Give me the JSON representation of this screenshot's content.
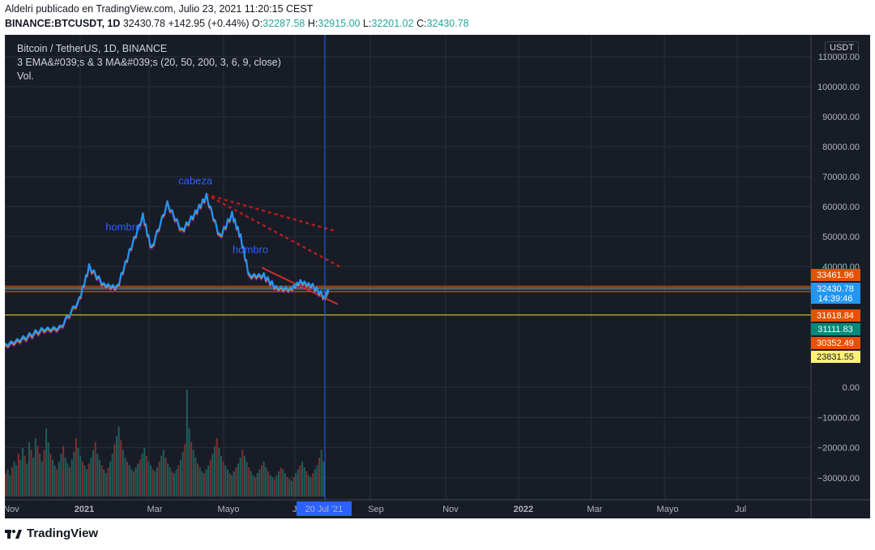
{
  "header": {
    "line1": "Aldelri publicado en TradingView.com, Julio 23, 2021 11:20:15 CEST",
    "symbol": "BINANCE:BTCUSDT, 1D",
    "last": "32430.78",
    "change": "+142.95 (+0.44%)",
    "o_label": "O:",
    "o_value": "32287.58",
    "h_label": "H:",
    "h_value": "32915.00",
    "l_label": "L:",
    "l_value": "32201.02",
    "c_label": "C:",
    "c_value": "32430.78"
  },
  "legend": {
    "title": "Bitcoin / TetherUS, 1D, BINANCE",
    "indicators": "3 EMA&#039;s & 3 MA&#039;s (20, 50, 200, 3, 6, 9, close)",
    "volume": "Vol."
  },
  "currency_button": "USDT",
  "footer": {
    "brand": "TradingView"
  },
  "chart_data": {
    "type": "line",
    "price_axis": {
      "ticks": [
        "110000.00",
        "100000.00",
        "90000.00",
        "80000.00",
        "70000.00",
        "60000.00",
        "50000.00",
        "40000.00"
      ],
      "tick_values": [
        110000,
        100000,
        90000,
        80000,
        70000,
        60000,
        50000,
        40000
      ]
    },
    "volume_axis": {
      "ticks": [
        "0.00",
        "−10000.00",
        "−20000.00",
        "−30000.00"
      ],
      "tick_values": [
        0,
        -10000,
        -20000,
        -30000
      ]
    },
    "x_axis": {
      "labels": [
        "Nov",
        "2021",
        "Mar",
        "Mayo",
        "Jul",
        "Sep",
        "Nov",
        "2022",
        "Mar",
        "Mayo",
        "Jul"
      ],
      "bold": [
        "2021",
        "2022"
      ]
    },
    "crosshair_date": "20 Jul '21",
    "price_tags": [
      {
        "value": "33461.96",
        "color": "#e65100"
      },
      {
        "value": "32430.78",
        "color": "#2196f3",
        "sub": "14:39:46"
      },
      {
        "value": "31618.84",
        "color": "#e65100"
      },
      {
        "value": "31111.83",
        "color": "#00897b"
      },
      {
        "value": "30352.49",
        "color": "#e65100"
      },
      {
        "value": "23831.55",
        "color": "#fff176"
      }
    ],
    "horizontal_levels": [
      33461.96,
      32900,
      32430.78,
      31618.84,
      23831.55
    ],
    "annotations": [
      {
        "text": "hombro",
        "x": "2021-02-05",
        "y": 52000
      },
      {
        "text": "cabeza",
        "x": "2021-04-05",
        "y": 67500
      },
      {
        "text": "hombro",
        "x": "2021-05-20",
        "y": 44500
      }
    ],
    "price_series": {
      "name": "",
      "x": [
        "2020-10-31",
        "2020-11-15",
        "2020-11-30",
        "2020-12-15",
        "2020-12-31",
        "2021-01-08",
        "2021-01-20",
        "2021-01-31",
        "2021-02-10",
        "2021-02-21",
        "2021-02-28",
        "2021-03-13",
        "2021-03-25",
        "2021-04-05",
        "2021-04-14",
        "2021-04-25",
        "2021-05-05",
        "2021-05-12",
        "2021-05-19",
        "2021-05-31",
        "2021-06-10",
        "2021-06-22",
        "2021-06-30",
        "2021-07-10",
        "2021-07-20",
        "2021-07-23"
      ],
      "values": [
        13800,
        16000,
        19000,
        19500,
        29000,
        40000,
        34000,
        33000,
        45000,
        57000,
        46000,
        61000,
        52000,
        58000,
        63500,
        50000,
        57500,
        50000,
        37000,
        37000,
        33000,
        32500,
        35000,
        33500,
        29800,
        32430
      ]
    },
    "trendlines": [
      {
        "style": "dotted",
        "color": "#b71c1c",
        "from": {
          "x": "2021-04-14",
          "y": 64000
        },
        "to": {
          "x": "2021-07-27",
          "y": 52000
        }
      },
      {
        "style": "dotted",
        "color": "#b71c1c",
        "from": {
          "x": "2021-04-14",
          "y": 64000
        },
        "to": {
          "x": "2021-08-01",
          "y": 40000
        }
      },
      {
        "style": "solid",
        "color": "#d32f2f",
        "from": {
          "x": "2021-05-30",
          "y": 39500
        },
        "to": {
          "x": "2021-07-30",
          "y": 27500
        }
      }
    ],
    "volume_series": {
      "name": "",
      "values": [
        12,
        14,
        11,
        15,
        18,
        16,
        22,
        19,
        25,
        21,
        17,
        28,
        24,
        20,
        30,
        26,
        22,
        18,
        24,
        35,
        28,
        22,
        19,
        16,
        14,
        18,
        22,
        26,
        20,
        17,
        15,
        19,
        23,
        30,
        25,
        21,
        18,
        16,
        14,
        17,
        20,
        24,
        28,
        22,
        19,
        16,
        14,
        12,
        15,
        18,
        22,
        27,
        31,
        36,
        29,
        24,
        20,
        18,
        16,
        14,
        13,
        15,
        17,
        19,
        22,
        25,
        21,
        18,
        16,
        14,
        13,
        15,
        18,
        21,
        24,
        20,
        17,
        15,
        13,
        12,
        14,
        16,
        19,
        23,
        27,
        55,
        35,
        28,
        24,
        20,
        17,
        15,
        13,
        12,
        14,
        16,
        19,
        22,
        26,
        30,
        25,
        21,
        18,
        16,
        14,
        12,
        11,
        13,
        15,
        17,
        20,
        24,
        21,
        18,
        15,
        13,
        11,
        10,
        12,
        14,
        16,
        18,
        15,
        13,
        11,
        10,
        9,
        11,
        13,
        15,
        14,
        12,
        10,
        9,
        8,
        10,
        12,
        14,
        16,
        18,
        15,
        13,
        11,
        10,
        12,
        14,
        16,
        20,
        24,
        18
      ]
    }
  }
}
